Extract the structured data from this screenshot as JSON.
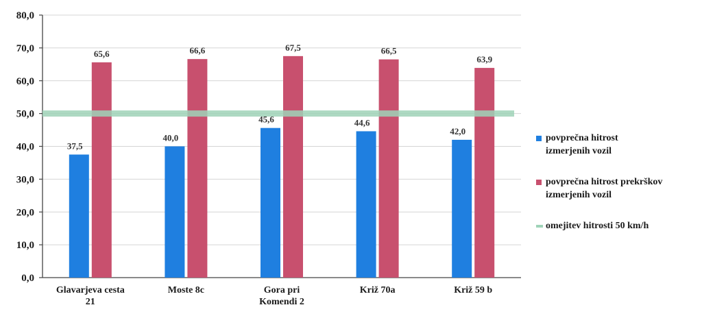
{
  "chart_data": {
    "type": "bar",
    "categories": [
      [
        "Glavarjeva cesta",
        "21"
      ],
      [
        "Moste 8c"
      ],
      [
        "Gora pri",
        "Komendi 2"
      ],
      [
        "Križ 70a"
      ],
      [
        "Križ 59 b"
      ]
    ],
    "series": [
      {
        "name": "povprečna hitrost izmerjenih vozil",
        "color": "#1f7fe0",
        "values": [
          37.5,
          40.0,
          45.6,
          44.6,
          42.0
        ],
        "labels": [
          "37,5",
          "40,0",
          "45,6",
          "44,6",
          "42,0"
        ]
      },
      {
        "name": "povprečna hitrost prekrškov izmerjenih vozil",
        "color": "#c8506e",
        "values": [
          65.6,
          66.6,
          67.5,
          66.5,
          63.9
        ],
        "labels": [
          "65,6",
          "66,6",
          "67,5",
          "66,5",
          "63,9"
        ]
      }
    ],
    "reference_line": {
      "name": "omejitev hitrosti 50 km/h",
      "value": 50,
      "color": "#9fd3b8"
    },
    "yticks": [
      "0,0",
      "10,0",
      "20,0",
      "30,0",
      "40,0",
      "50,0",
      "60,0",
      "70,0",
      "80,0"
    ],
    "ylim": [
      0,
      80
    ],
    "grid": true,
    "legend_position": "right",
    "title": "",
    "xlabel": "",
    "ylabel": ""
  },
  "legend": {
    "items": [
      {
        "label_lines": [
          "povprečna hitrost",
          "izmerjenih vozil"
        ],
        "color": "#1f7fe0",
        "kind": "square"
      },
      {
        "label_lines": [
          "povprečna hitrost prekrškov",
          "izmerjenih vozil"
        ],
        "color": "#c8506e",
        "kind": "square"
      },
      {
        "label_lines": [
          "omejitev hitrosti 50 km/h"
        ],
        "color": "#9fd3b8",
        "kind": "line"
      }
    ]
  }
}
